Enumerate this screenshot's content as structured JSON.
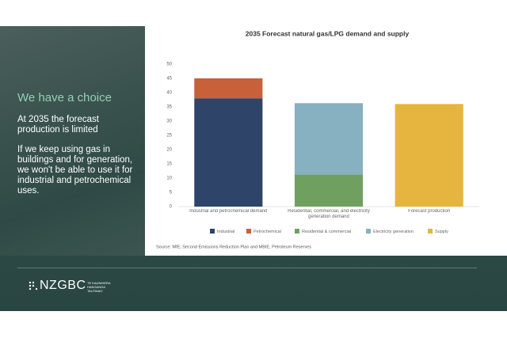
{
  "slide": {
    "heading": "We have a choice",
    "paragraphs": [
      "At 2035 the forecast production is limited",
      "If we keep using gas in buildings and for generation, we won't be able to use it for industrial and petrochemical uses."
    ],
    "logo": "NZGBC",
    "logo_tagline": "TE KAUNIHERA HANGANGA TAUTAIAO"
  },
  "chart_data": {
    "type": "stacked_bar",
    "title": "2035 Forecast natural gas/LPG demand and supply",
    "categories": [
      "Industrial and petrochemical demand",
      "Residential, commercial, and electricity generation demand",
      "Forecast production"
    ],
    "series": [
      {
        "name": "Industrial",
        "color": "#2e4468",
        "values": [
          38,
          null,
          null
        ]
      },
      {
        "name": "Petrochemical",
        "color": "#c8603a",
        "values": [
          7,
          null,
          null
        ]
      },
      {
        "name": "Residential & commercial",
        "color": "#6fa05f",
        "values": [
          null,
          11.3,
          null
        ]
      },
      {
        "name": "Electricity generation",
        "color": "#87b0c0",
        "values": [
          null,
          25,
          null
        ]
      },
      {
        "name": "Supply",
        "color": "#e5b53f",
        "values": [
          null,
          null,
          36
        ]
      }
    ],
    "ylim": [
      0,
      50
    ],
    "yticks": [
      0,
      5,
      10,
      15,
      20,
      25,
      30,
      35,
      40,
      45,
      50
    ],
    "grid": false,
    "source": "Source: MfE, Second Emissions Reduction Plan and MBIE, Petroleum Reserves"
  }
}
